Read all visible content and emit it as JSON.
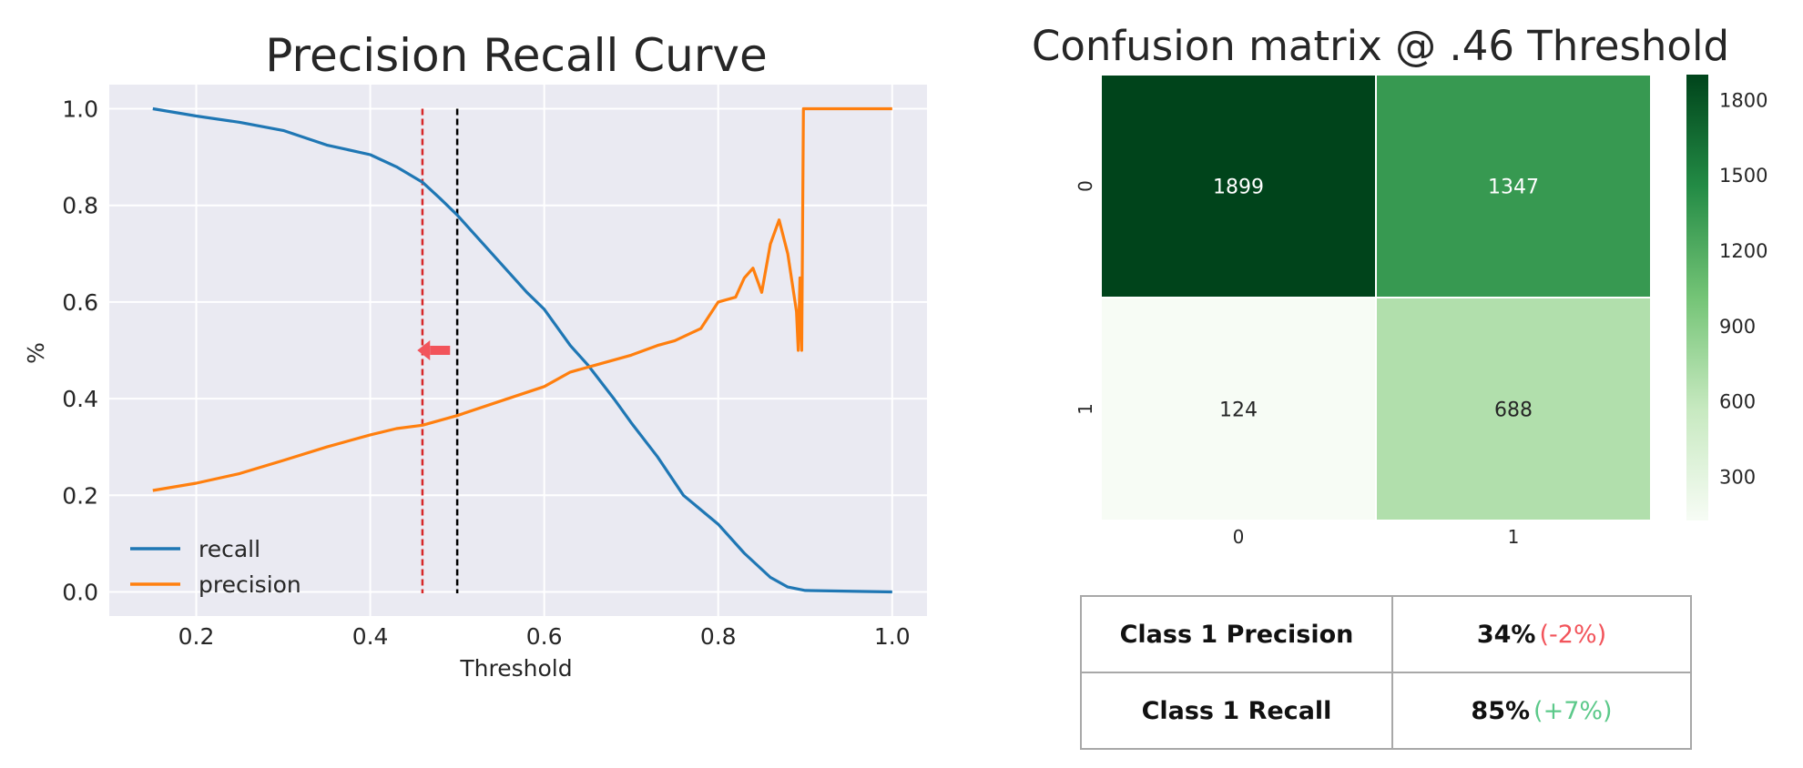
{
  "chart_data": [
    {
      "type": "line",
      "title": "Precision Recall Curve",
      "xlabel": "Threshold",
      "ylabel": "%",
      "xlim": [
        0.1,
        1.04
      ],
      "ylim": [
        -0.05,
        1.05
      ],
      "xticks": [
        "0.2",
        "0.4",
        "0.6",
        "0.8",
        "1.0"
      ],
      "yticks": [
        "0.0",
        "0.2",
        "0.4",
        "0.6",
        "0.8",
        "1.0"
      ],
      "grid": true,
      "legend": "lower-left",
      "series": [
        {
          "name": "recall",
          "color": "#1f77b4",
          "points": [
            [
              0.15,
              1.0
            ],
            [
              0.2,
              0.985
            ],
            [
              0.25,
              0.972
            ],
            [
              0.3,
              0.955
            ],
            [
              0.35,
              0.925
            ],
            [
              0.4,
              0.905
            ],
            [
              0.43,
              0.88
            ],
            [
              0.46,
              0.848
            ],
            [
              0.48,
              0.815
            ],
            [
              0.5,
              0.78
            ],
            [
              0.52,
              0.74
            ],
            [
              0.55,
              0.68
            ],
            [
              0.58,
              0.62
            ],
            [
              0.6,
              0.585
            ],
            [
              0.63,
              0.51
            ],
            [
              0.65,
              0.47
            ],
            [
              0.68,
              0.4
            ],
            [
              0.7,
              0.35
            ],
            [
              0.73,
              0.28
            ],
            [
              0.76,
              0.2
            ],
            [
              0.8,
              0.14
            ],
            [
              0.83,
              0.08
            ],
            [
              0.86,
              0.03
            ],
            [
              0.88,
              0.01
            ],
            [
              0.9,
              0.003
            ],
            [
              1.0,
              0.0
            ]
          ]
        },
        {
          "name": "precision",
          "color": "#ff7f0e",
          "points": [
            [
              0.15,
              0.21
            ],
            [
              0.2,
              0.225
            ],
            [
              0.25,
              0.245
            ],
            [
              0.3,
              0.272
            ],
            [
              0.35,
              0.3
            ],
            [
              0.4,
              0.325
            ],
            [
              0.43,
              0.338
            ],
            [
              0.46,
              0.345
            ],
            [
              0.5,
              0.365
            ],
            [
              0.55,
              0.395
            ],
            [
              0.6,
              0.425
            ],
            [
              0.63,
              0.455
            ],
            [
              0.66,
              0.47
            ],
            [
              0.7,
              0.49
            ],
            [
              0.73,
              0.51
            ],
            [
              0.75,
              0.52
            ],
            [
              0.78,
              0.545
            ],
            [
              0.8,
              0.6
            ],
            [
              0.82,
              0.61
            ],
            [
              0.83,
              0.65
            ],
            [
              0.84,
              0.67
            ],
            [
              0.85,
              0.62
            ],
            [
              0.86,
              0.72
            ],
            [
              0.87,
              0.77
            ],
            [
              0.88,
              0.7
            ],
            [
              0.89,
              0.58
            ],
            [
              0.892,
              0.5
            ],
            [
              0.894,
              0.65
            ],
            [
              0.896,
              0.5
            ],
            [
              0.898,
              1.0
            ],
            [
              1.0,
              1.0
            ]
          ]
        }
      ],
      "vlines": [
        {
          "x": 0.46,
          "color": "#d62728"
        },
        {
          "x": 0.5,
          "color": "#000000"
        }
      ],
      "arrow": {
        "x": 0.475,
        "y": 0.5,
        "direction": "left",
        "color": "#f2545b"
      }
    },
    {
      "type": "heatmap",
      "title": "Confusion matrix @ .46 Threshold",
      "row_labels": [
        "0",
        "1"
      ],
      "col_labels": [
        "0",
        "1"
      ],
      "values": [
        [
          1899,
          1347
        ],
        [
          124,
          688
        ]
      ],
      "colorbar_ticks": [
        "1800",
        "1500",
        "1200",
        "900",
        "600",
        "300"
      ],
      "colorbar_range": [
        124,
        1899
      ],
      "colormap": "Greens"
    }
  ],
  "metrics_table": {
    "rows": [
      {
        "label": "Class 1  Precision",
        "value": "34%",
        "delta": "(-2%)",
        "delta_color": "#f2545b"
      },
      {
        "label": "Class 1  Recall",
        "value": "85%",
        "delta": "(+7%)",
        "delta_color": "#5cc98a"
      }
    ]
  }
}
